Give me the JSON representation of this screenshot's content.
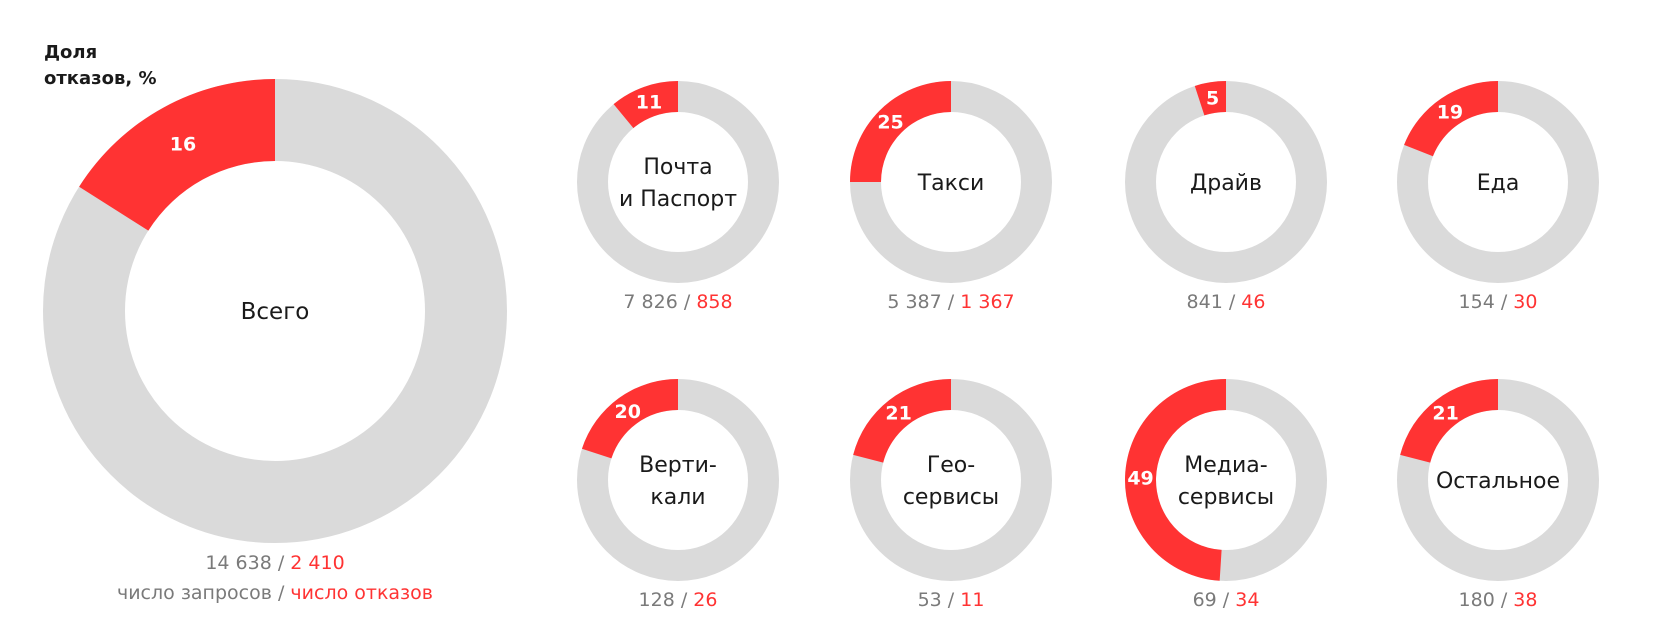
{
  "colors": {
    "refusal": "#ff3333",
    "track": "#dadada",
    "muted": "#7a7a7a",
    "text": "#1a1a1a"
  },
  "chart_data": {
    "type": "pie",
    "title_lines": [
      "Доля",
      "отказов, %"
    ],
    "legend": {
      "requests": "число запросов",
      "separator": " / ",
      "refusals": "число отказов"
    },
    "total": {
      "label_lines": [
        "Всего"
      ],
      "percent": 16,
      "requests_text": "14 638",
      "refusals_text": "2 410",
      "requests": 14638,
      "refusals": 2410
    },
    "segments": [
      {
        "label_lines": [
          "Почта",
          "и Паспорт"
        ],
        "percent": 11,
        "requests_text": "7 826",
        "refusals_text": "858",
        "requests": 7826,
        "refusals": 858
      },
      {
        "label_lines": [
          "Такси"
        ],
        "percent": 25,
        "requests_text": "5 387",
        "refusals_text": "1 367",
        "requests": 5387,
        "refusals": 1367
      },
      {
        "label_lines": [
          "Драйв"
        ],
        "percent": 5,
        "requests_text": "841",
        "refusals_text": "46",
        "requests": 841,
        "refusals": 46
      },
      {
        "label_lines": [
          "Еда"
        ],
        "percent": 19,
        "requests_text": "154",
        "refusals_text": "30",
        "requests": 154,
        "refusals": 30
      },
      {
        "label_lines": [
          "Верти-",
          "кали"
        ],
        "percent": 20,
        "requests_text": "128",
        "refusals_text": "26",
        "requests": 128,
        "refusals": 26
      },
      {
        "label_lines": [
          "Гео-",
          "сервисы"
        ],
        "percent": 21,
        "requests_text": "53",
        "refusals_text": "11",
        "requests": 53,
        "refusals": 11
      },
      {
        "label_lines": [
          "Медиа-",
          "сервисы"
        ],
        "percent": 49,
        "requests_text": "69",
        "refusals_text": "34",
        "requests": 69,
        "refusals": 34
      },
      {
        "label_lines": [
          "Остальное"
        ],
        "percent": 21,
        "requests_text": "180",
        "refusals_text": "38",
        "requests": 180,
        "refusals": 38
      }
    ]
  }
}
